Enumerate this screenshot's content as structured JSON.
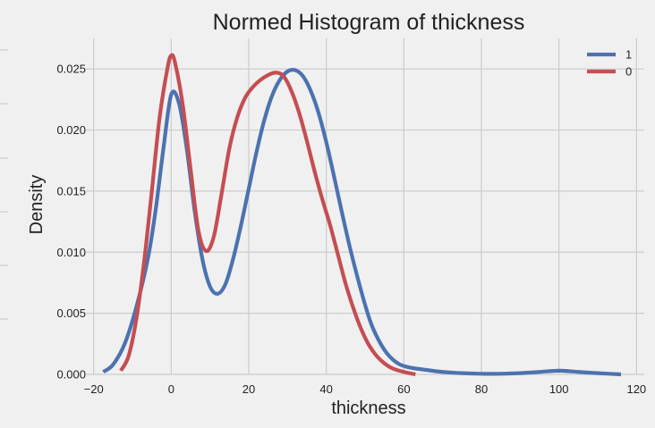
{
  "chart_data": {
    "type": "line",
    "title": "Normed Histogram of thickness",
    "xlabel": "thickness",
    "ylabel": "Density",
    "xlim": [
      -22,
      122
    ],
    "ylim": [
      0,
      0.0275
    ],
    "grid": true,
    "legend_position": "top-right",
    "x_ticks": [
      -20,
      0,
      20,
      40,
      60,
      80,
      100,
      120
    ],
    "x_tick_labels": [
      "−20",
      "0",
      "20",
      "40",
      "60",
      "80",
      "100",
      "120"
    ],
    "y_ticks": [
      0,
      0.005,
      0.01,
      0.015,
      0.02,
      0.025
    ],
    "y_tick_labels": [
      "0.000",
      "0.005",
      "0.010",
      "0.015",
      "0.020",
      "0.025"
    ],
    "series": [
      {
        "name": "1",
        "color": "#4c72b0",
        "x": [
          -17.5,
          -15,
          -12,
          -9,
          -6,
          -4,
          -2,
          0,
          2,
          4,
          6,
          8,
          10,
          12,
          14,
          16,
          18,
          20,
          22,
          24,
          26,
          28,
          30,
          32,
          34,
          36,
          38,
          40,
          42,
          44,
          46,
          48,
          50,
          52,
          55,
          58,
          61,
          65,
          70,
          75,
          80,
          85,
          90,
          95,
          100,
          105,
          110,
          116
        ],
        "y": [
          0.0002,
          0.0008,
          0.0025,
          0.0055,
          0.0095,
          0.0135,
          0.0185,
          0.0229,
          0.0222,
          0.0185,
          0.0135,
          0.0095,
          0.0072,
          0.0066,
          0.0074,
          0.0095,
          0.0122,
          0.0152,
          0.0182,
          0.0208,
          0.0228,
          0.0241,
          0.0248,
          0.0249,
          0.0244,
          0.0232,
          0.0214,
          0.019,
          0.0162,
          0.0133,
          0.0105,
          0.008,
          0.0057,
          0.0038,
          0.002,
          0.001,
          0.0006,
          0.0004,
          0.0002,
          0.0001,
          5e-05,
          5e-05,
          0.0001,
          0.0002,
          0.0003,
          0.0002,
          0.0001,
          0.0
        ]
      },
      {
        "name": "0",
        "color": "#c44e52",
        "x": [
          -13,
          -11,
          -9,
          -7,
          -5,
          -3,
          -1,
          0,
          1,
          3,
          5,
          7,
          9,
          11,
          13,
          15,
          17,
          19,
          21,
          23,
          25,
          27,
          29,
          31,
          33,
          35,
          37,
          39,
          41,
          43,
          45,
          47,
          49,
          51,
          53,
          55,
          57,
          60,
          63
        ],
        "y": [
          0.0003,
          0.0015,
          0.0045,
          0.0092,
          0.015,
          0.021,
          0.025,
          0.0261,
          0.0255,
          0.022,
          0.0168,
          0.0118,
          0.0101,
          0.0113,
          0.0148,
          0.0185,
          0.021,
          0.0226,
          0.0235,
          0.0241,
          0.0245,
          0.0247,
          0.0244,
          0.0232,
          0.0214,
          0.0191,
          0.0166,
          0.0143,
          0.0122,
          0.0098,
          0.0074,
          0.0054,
          0.0037,
          0.0024,
          0.0015,
          0.0009,
          0.0005,
          0.0002,
          0.0
        ]
      }
    ]
  }
}
